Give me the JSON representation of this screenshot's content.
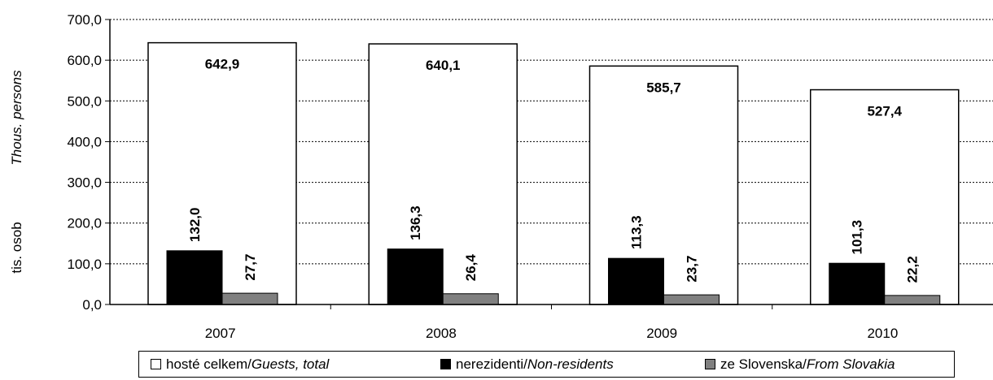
{
  "chart_data": {
    "type": "bar",
    "categories": [
      "2007",
      "2008",
      "2009",
      "2010"
    ],
    "series": [
      {
        "name": "hosté celkem/Guests, total",
        "name_parts": [
          "hosté celkem/",
          "Guests, total"
        ],
        "color": "#ffffff",
        "values": [
          642.9,
          640.1,
          585.7,
          527.4
        ],
        "labels": [
          "642,9",
          "640,1",
          "585,7",
          "527,4"
        ]
      },
      {
        "name": "nerezidenti/Non-residents",
        "name_parts": [
          "nerezidenti/",
          "Non-residents"
        ],
        "color": "#000000",
        "values": [
          132.0,
          136.3,
          113.3,
          101.3
        ],
        "labels": [
          "132,0",
          "136,3",
          "113,3",
          "101,3"
        ]
      },
      {
        "name": "ze Slovenska/From Slovakia",
        "name_parts": [
          "ze Slovenska/",
          "From Slovakia"
        ],
        "color": "#808080",
        "values": [
          27.7,
          26.4,
          23.7,
          22.2
        ],
        "labels": [
          "27,7",
          "26,4",
          "23,7",
          "22,2"
        ]
      }
    ],
    "ylabel_top": "Thous. persons",
    "ylabel_bottom": "tis. osob",
    "ylim": [
      0,
      700
    ],
    "yticks": [
      0,
      100,
      200,
      300,
      400,
      500,
      600,
      700
    ],
    "ytick_labels": [
      "0,0",
      "100,0",
      "200,0",
      "300,0",
      "400,0",
      "500,0",
      "600,0",
      "700,0"
    ],
    "grid": "dashed horizontal",
    "legend_position": "bottom"
  }
}
